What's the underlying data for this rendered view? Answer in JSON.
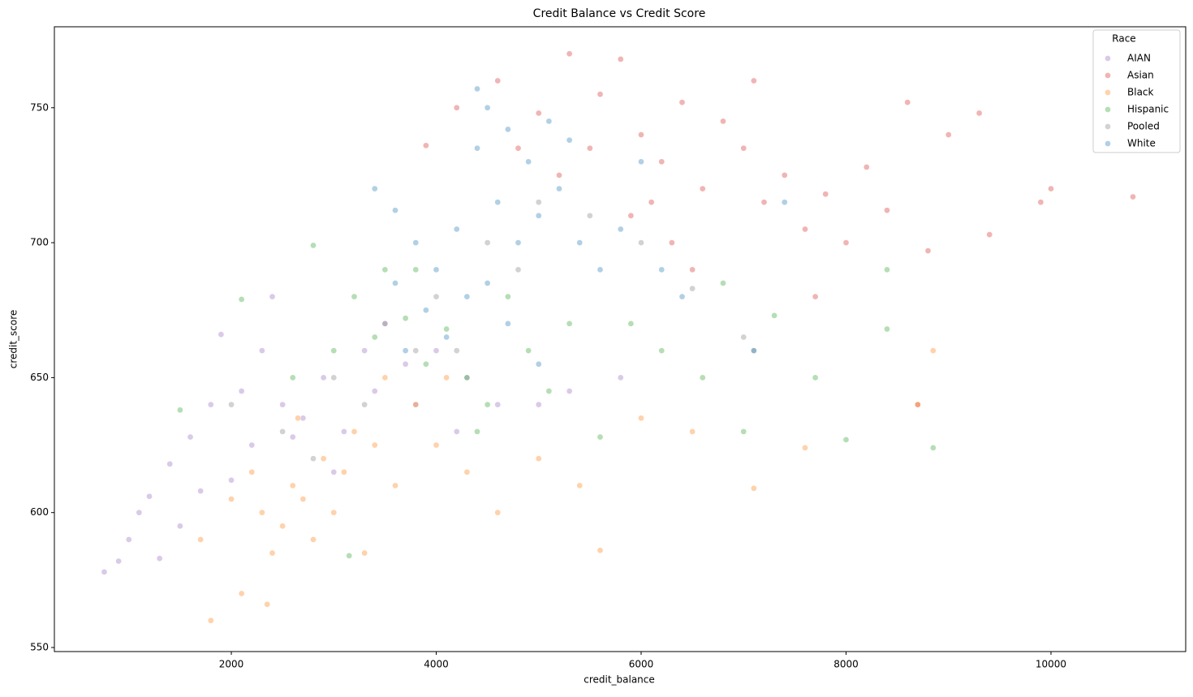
{
  "chart_data": {
    "type": "scatter",
    "title": "Credit Balance vs Credit Score",
    "x_label": "credit_balance",
    "y_label": "credit_score",
    "legend_title": "Race",
    "legend": "upper right",
    "xlim": [
      273,
      11315
    ],
    "xticks": [
      2000,
      4000,
      6000,
      8000,
      10000
    ],
    "ylim": [
      548.5,
      780
    ],
    "yticks": [
      550,
      600,
      650,
      700,
      750
    ],
    "series": [
      {
        "name": "AIAN",
        "color": "#9467bd",
        "x": [
          760,
          1000,
          1200,
          1400,
          1600,
          1800,
          1900,
          2100,
          2300,
          2500,
          2200,
          2700,
          2900,
          3100,
          3300,
          3500,
          3700,
          4000,
          4300,
          4600,
          5000,
          5300,
          5800,
          2000,
          1500,
          1300,
          2600,
          3000,
          3800,
          4200,
          1700,
          2400,
          900,
          1100,
          3400
        ],
        "y": [
          578,
          590,
          606,
          618,
          628,
          640,
          666,
          645,
          660,
          640,
          625,
          635,
          650,
          630,
          660,
          670,
          655,
          660,
          650,
          640,
          640,
          645,
          650,
          612,
          595,
          583,
          628,
          615,
          640,
          630,
          608,
          680,
          582,
          600,
          645
        ]
      },
      {
        "name": "Asian",
        "color": "#d62728",
        "x": [
          3900,
          4200,
          4600,
          5000,
          5300,
          5600,
          5800,
          6000,
          6200,
          6400,
          6600,
          6800,
          7000,
          7200,
          7400,
          7600,
          7800,
          8000,
          8200,
          8400,
          8600,
          8800,
          9000,
          9300,
          9900,
          10000,
          10800,
          5500,
          5900,
          6300,
          7100,
          5200,
          4800,
          6500,
          8700,
          9400,
          7700,
          6100
        ],
        "y": [
          736,
          750,
          760,
          748,
          770,
          755,
          768,
          740,
          730,
          752,
          720,
          745,
          735,
          715,
          725,
          705,
          718,
          700,
          728,
          712,
          752,
          697,
          740,
          748,
          715,
          720,
          717,
          735,
          710,
          700,
          760,
          725,
          735,
          690,
          640,
          703,
          680,
          715
        ]
      },
      {
        "name": "Black",
        "color": "#ff7f0e",
        "x": [
          1800,
          2100,
          2300,
          2500,
          2600,
          2700,
          2800,
          2900,
          3000,
          3100,
          3200,
          2400,
          2200,
          2000,
          1700,
          3400,
          3600,
          3800,
          4000,
          4300,
          4600,
          5000,
          5400,
          5600,
          6000,
          6500,
          7100,
          7600,
          8700,
          8850,
          2350,
          3500,
          4100,
          2650,
          3300
        ],
        "y": [
          560,
          570,
          600,
          595,
          610,
          605,
          590,
          620,
          600,
          615,
          630,
          585,
          615,
          605,
          590,
          625,
          610,
          640,
          625,
          615,
          600,
          620,
          610,
          586,
          635,
          630,
          609,
          624,
          640,
          660,
          566,
          650,
          650,
          635,
          585
        ]
      },
      {
        "name": "Hispanic",
        "color": "#2ca02c",
        "x": [
          1500,
          2100,
          2600,
          2800,
          3000,
          3200,
          3400,
          3500,
          3700,
          3900,
          4100,
          4300,
          4500,
          4700,
          4900,
          5100,
          5300,
          5600,
          5900,
          6200,
          6600,
          7000,
          7300,
          7700,
          8000,
          8400,
          8400,
          8850,
          3150,
          3800,
          4400,
          6800
        ],
        "y": [
          638,
          679,
          650,
          699,
          660,
          680,
          665,
          690,
          672,
          655,
          668,
          650,
          640,
          680,
          660,
          645,
          670,
          628,
          670,
          660,
          650,
          630,
          673,
          650,
          627,
          668,
          690,
          624,
          584,
          690,
          630,
          685
        ]
      },
      {
        "name": "Pooled",
        "color": "#7f7f7f",
        "x": [
          2000,
          2500,
          3000,
          3500,
          4000,
          4500,
          5000,
          5500,
          6000,
          6500,
          7000,
          3300,
          4200,
          4800,
          2800,
          7100,
          3800
        ],
        "y": [
          640,
          630,
          650,
          670,
          680,
          700,
          715,
          710,
          700,
          683,
          665,
          640,
          660,
          690,
          620,
          660,
          660
        ]
      },
      {
        "name": "White",
        "color": "#1f77b4",
        "x": [
          3400,
          3600,
          3800,
          4000,
          4200,
          4400,
          4500,
          4700,
          4900,
          5100,
          5300,
          4600,
          4800,
          5000,
          5200,
          5400,
          5600,
          5800,
          6000,
          3900,
          4100,
          4300,
          4500,
          4700,
          3700,
          6200,
          6400,
          7100,
          7400,
          4400,
          5000,
          3600
        ],
        "y": [
          720,
          712,
          700,
          690,
          705,
          735,
          750,
          742,
          730,
          745,
          738,
          715,
          700,
          710,
          720,
          700,
          690,
          705,
          730,
          675,
          665,
          680,
          685,
          670,
          660,
          690,
          680,
          660,
          715,
          757,
          655,
          685
        ]
      }
    ]
  }
}
